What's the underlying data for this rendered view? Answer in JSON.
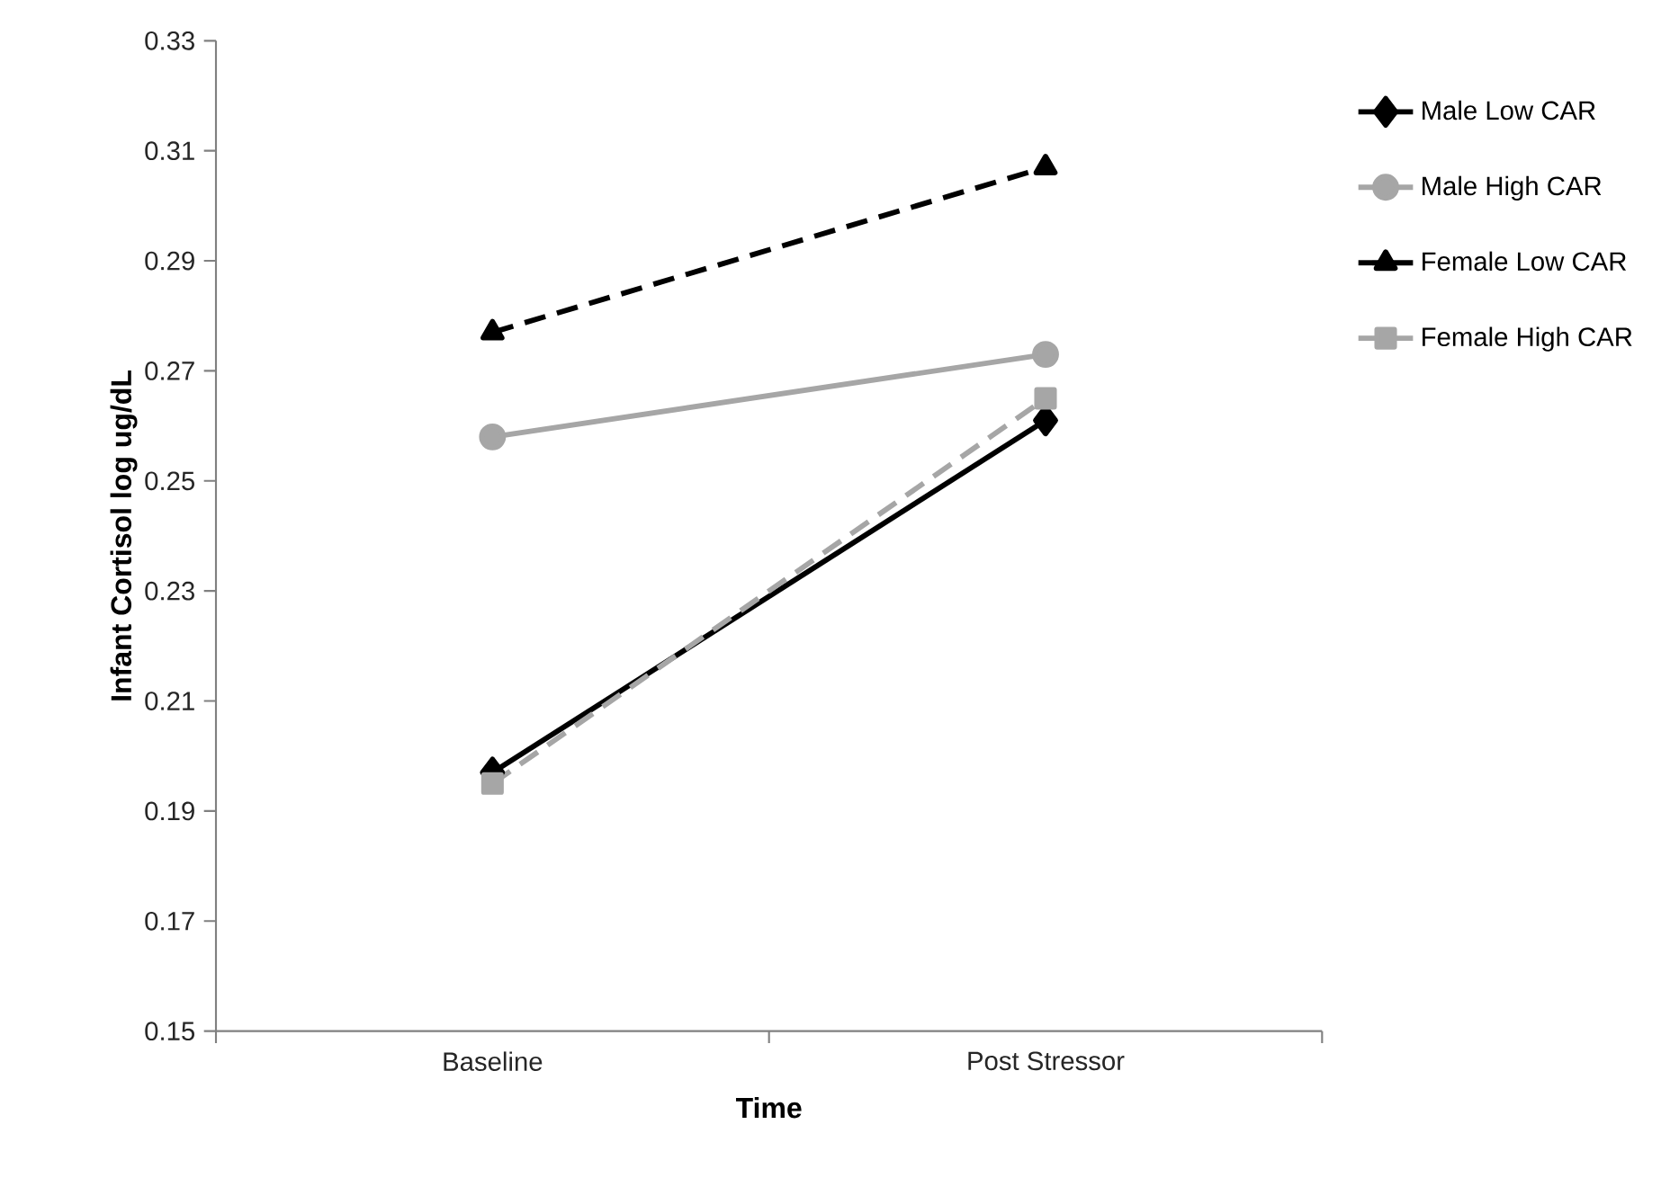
{
  "chart_data": {
    "type": "line",
    "xlabel": "Time",
    "ylabel": "Infant Cortisol log ug/dL",
    "categories": [
      "Baseline",
      "Post Stressor"
    ],
    "ylim": [
      0.15,
      0.33
    ],
    "yticks": [
      0.15,
      0.17,
      0.19,
      0.21,
      0.23,
      0.25,
      0.27,
      0.29,
      0.31,
      0.33
    ],
    "legend": "right",
    "grid": false,
    "series": [
      {
        "name": "Male Low CAR",
        "color": "#000000",
        "values": [
          0.197,
          0.261
        ],
        "marker": "diamond",
        "line_style": "solid"
      },
      {
        "name": "Male High CAR",
        "color": "#a6a6a6",
        "values": [
          0.258,
          0.273
        ],
        "marker": "circle",
        "line_style": "solid"
      },
      {
        "name": "Female Low CAR",
        "color": "#000000",
        "values": [
          0.277,
          0.307
        ],
        "marker": "triangle",
        "line_style": "dashed"
      },
      {
        "name": "Female High CAR",
        "color": "#a6a6a6",
        "values": [
          0.195,
          0.265
        ],
        "marker": "square",
        "line_style": "dashed"
      }
    ]
  }
}
